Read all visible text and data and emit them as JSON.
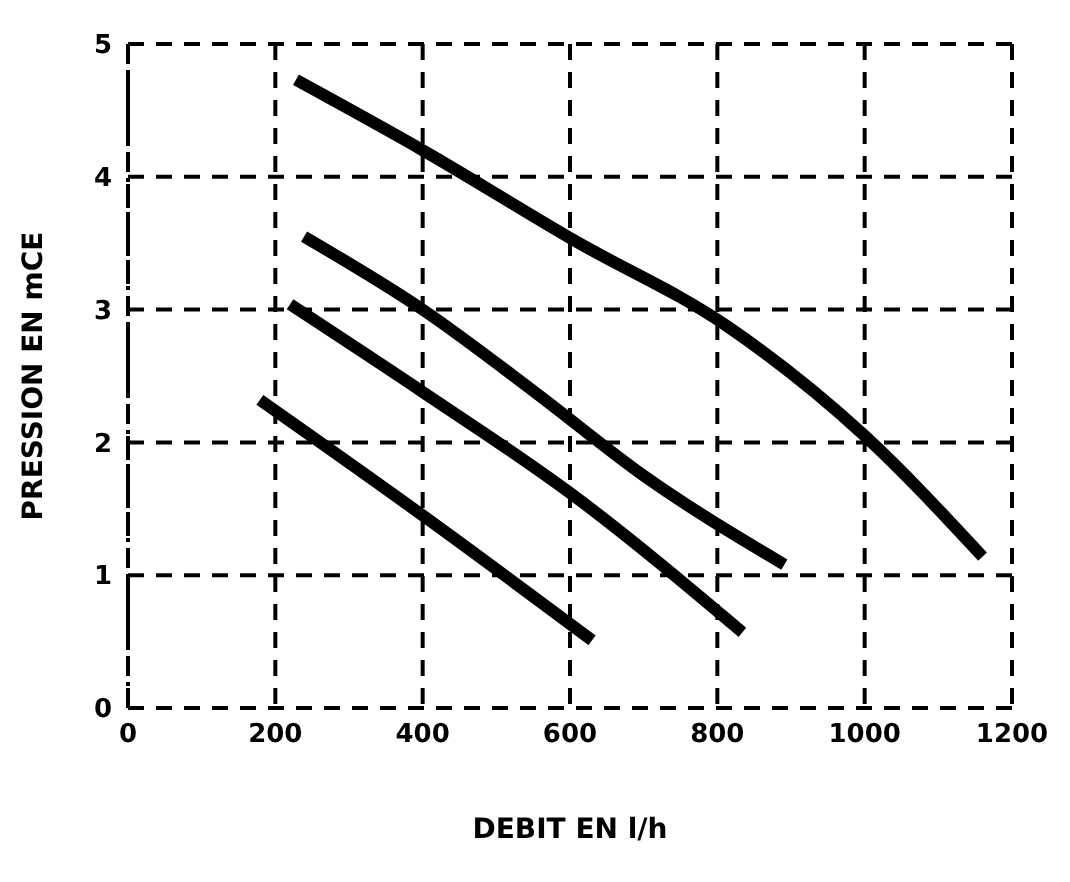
{
  "chart_data": {
    "type": "line",
    "xlabel": "DEBIT EN l/h",
    "ylabel": "PRESSION EN mCE",
    "xlim": [
      0,
      1200
    ],
    "xticks": [
      0,
      200,
      400,
      600,
      800,
      1000,
      1200
    ],
    "ylim": [
      0,
      5
    ],
    "yticks": [
      0,
      1,
      2,
      3,
      4,
      5
    ],
    "grid": true,
    "marker": "none",
    "line_style": "solid",
    "series": [
      {
        "color": "#000000",
        "x": [
          228,
          400,
          606,
          812,
          1000,
          1160
        ],
        "values": [
          4.73,
          4.2,
          3.52,
          2.88,
          2.05,
          1.14
        ]
      },
      {
        "color": "#000000",
        "x": [
          239,
          400,
          552,
          700,
          891
        ],
        "values": [
          3.55,
          3.0,
          2.38,
          1.75,
          1.08
        ]
      },
      {
        "color": "#000000",
        "x": [
          220,
          400,
          600,
          834
        ],
        "values": [
          3.04,
          2.38,
          1.62,
          0.57
        ]
      },
      {
        "color": "#000000",
        "x": [
          179,
          400,
          630
        ],
        "values": [
          2.32,
          1.45,
          0.51
        ]
      }
    ]
  }
}
